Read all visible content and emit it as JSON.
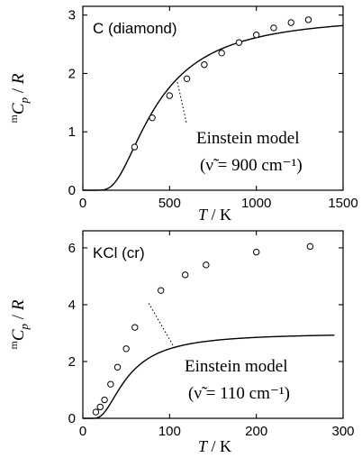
{
  "chart_data": [
    {
      "type": "scatter",
      "panel_label": "C (diamond)",
      "xlabel_symbol": "T",
      "xlabel_unit": " / K",
      "ylabel": "mCp / R",
      "xlim": [
        0,
        1500
      ],
      "ylim": [
        0,
        3.15
      ],
      "xticks": [
        0,
        500,
        1000,
        1500
      ],
      "yticks": [
        0,
        1,
        2,
        3
      ],
      "grid": false,
      "series": [
        {
          "kind": "points",
          "x": [
            298,
            400,
            500,
            600,
            700,
            800,
            900,
            1000,
            1100,
            1200,
            1300
          ],
          "y": [
            0.74,
            1.24,
            1.62,
            1.91,
            2.15,
            2.35,
            2.53,
            2.66,
            2.78,
            2.87,
            2.92
          ]
        },
        {
          "kind": "model",
          "model": "einstein",
          "theta_K": 1295,
          "x_range": [
            0,
            1500
          ]
        }
      ],
      "annotation": {
        "line1": "Einstein model",
        "line2": "(ν̃ = 900 cm⁻¹)",
        "points_to": [
          545,
          1.85
        ]
      }
    },
    {
      "type": "scatter",
      "panel_label": "KCl (cr)",
      "xlabel_symbol": "T",
      "xlabel_unit": " / K",
      "ylabel": "mCp / R",
      "xlim": [
        0,
        300
      ],
      "ylim": [
        0,
        6.6
      ],
      "xticks": [
        0,
        100,
        200,
        300
      ],
      "yticks": [
        0,
        2,
        4,
        6
      ],
      "grid": false,
      "series": [
        {
          "kind": "points",
          "x": [
            15,
            20,
            25,
            32,
            40,
            50,
            60,
            90,
            118,
            142,
            200,
            262
          ],
          "y": [
            0.22,
            0.4,
            0.65,
            1.2,
            1.8,
            2.45,
            3.2,
            4.5,
            5.05,
            5.4,
            5.85,
            6.05
          ]
        },
        {
          "kind": "model",
          "model": "einstein",
          "theta_K": 158,
          "x_range": [
            0,
            290
          ]
        }
      ],
      "annotation": {
        "line1": "Einstein model",
        "line2": "(ν̃ = 110 cm⁻¹)",
        "points_to": [
          76,
          4.05
        ]
      }
    }
  ]
}
